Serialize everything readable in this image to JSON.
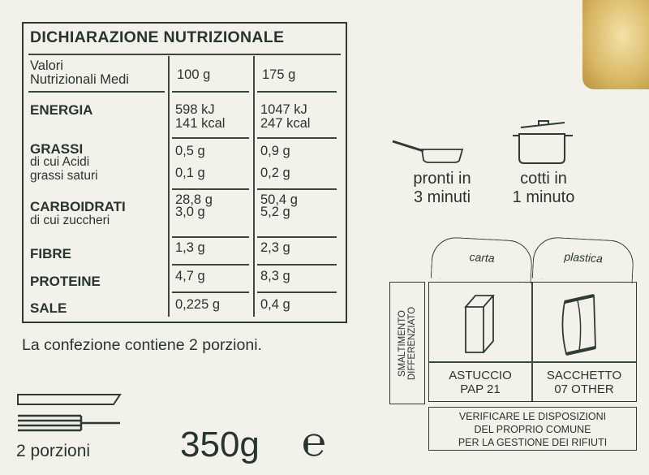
{
  "nutrition": {
    "title": "DICHIARAZIONE NUTRIZIONALE",
    "header": {
      "label_line1": "Valori",
      "label_line2": "Nutrizionali Medi",
      "col1": "100 g",
      "col2": "175 g"
    },
    "rows": [
      {
        "label": "ENERGIA",
        "v1a": "598 kJ",
        "v1b": "141 kcal",
        "v2a": "1047 kJ",
        "v2b": "247 kcal"
      },
      {
        "label": "GRASSI",
        "sub1": "di cui Acidi",
        "sub2": "grassi saturi",
        "v1a": "0,5 g",
        "v1b": "0,1 g",
        "v2a": "0,9 g",
        "v2b": "0,2 g"
      },
      {
        "label": "CARBOIDRATI",
        "sub1": "di cui zuccheri",
        "v1a": "28,8 g",
        "v1b": "3,0 g",
        "v2a": "50,4 g",
        "v2b": "5,2 g"
      },
      {
        "label": "FIBRE",
        "v1a": "1,3 g",
        "v2a": "2,3 g"
      },
      {
        "label": "PROTEINE",
        "v1a": "4,7 g",
        "v2a": "8,3 g"
      },
      {
        "label": "SALE",
        "v1a": "0,225 g",
        "v2a": "0,4 g"
      }
    ]
  },
  "portions_note": "La confezione contiene 2 porzioni.",
  "portions_label": "2 porzioni",
  "weight": "350g",
  "estimated_mark": "℮",
  "cooking": [
    {
      "icon": "frying-pan-icon",
      "line1": "pronti in",
      "line2": "3 minuti"
    },
    {
      "icon": "pot-icon",
      "line1": "cotti in",
      "line2": "1 minuto"
    }
  ],
  "recycling": {
    "side_label_1": "SMALTIMENTO",
    "side_label_2": "DIFFERENZIATO",
    "items": [
      {
        "bin": "carta",
        "name": "ASTUCCIO",
        "code": "PAP 21",
        "icon": "carton-box-icon"
      },
      {
        "bin": "plastica",
        "name": "SACCHETTO",
        "code": "07 OTHER",
        "icon": "plastic-bag-icon"
      }
    ],
    "note": [
      "VERIFICARE LE DISPOSIZIONI",
      "DEL PROPRIO COMUNE",
      "PER LA GESTIONE DEI RIFIUTI"
    ]
  }
}
